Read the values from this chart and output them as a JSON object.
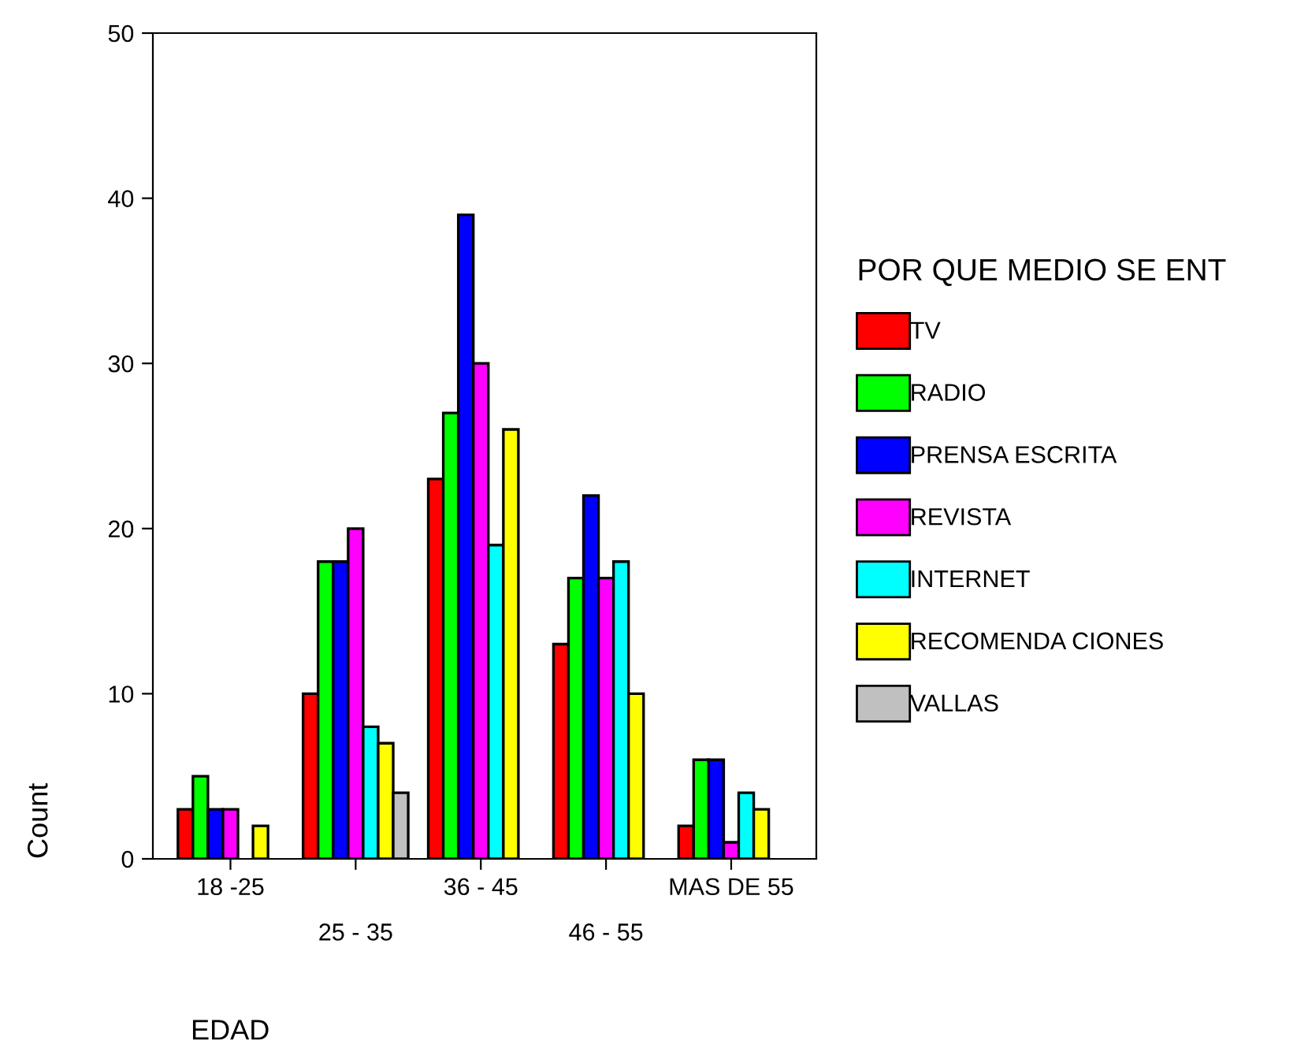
{
  "chart_data": {
    "type": "bar",
    "xlabel": "EDAD",
    "ylabel": "Count",
    "legend_title": "POR QUE MEDIO SE ENT",
    "categories": [
      "18 -25",
      "25 - 35",
      "36 - 45",
      "46 - 55",
      "MAS DE 55"
    ],
    "series": [
      {
        "name": "TV",
        "color": "#ff0000",
        "values": [
          3,
          10,
          23,
          13,
          2
        ]
      },
      {
        "name": "RADIO",
        "color": "#00ff00",
        "values": [
          5,
          18,
          27,
          17,
          6
        ]
      },
      {
        "name": "PRENSA ESCRITA",
        "color": "#0000ff",
        "values": [
          3,
          18,
          39,
          22,
          6
        ]
      },
      {
        "name": "REVISTA",
        "color": "#ff00ff",
        "values": [
          3,
          20,
          30,
          17,
          1
        ]
      },
      {
        "name": "INTERNET",
        "color": "#00ffff",
        "values": [
          null,
          8,
          19,
          18,
          4
        ]
      },
      {
        "name": "RECOMENDA CIONES",
        "color": "#ffff00",
        "values": [
          2,
          7,
          26,
          10,
          3
        ]
      },
      {
        "name": "VALLAS",
        "color": "#c0c0c0",
        "values": [
          null,
          4,
          null,
          null,
          null
        ]
      }
    ],
    "ylim": [
      0,
      50
    ],
    "yticks": [
      0,
      10,
      20,
      30,
      40,
      50
    ],
    "grid": false,
    "legend": "right"
  }
}
